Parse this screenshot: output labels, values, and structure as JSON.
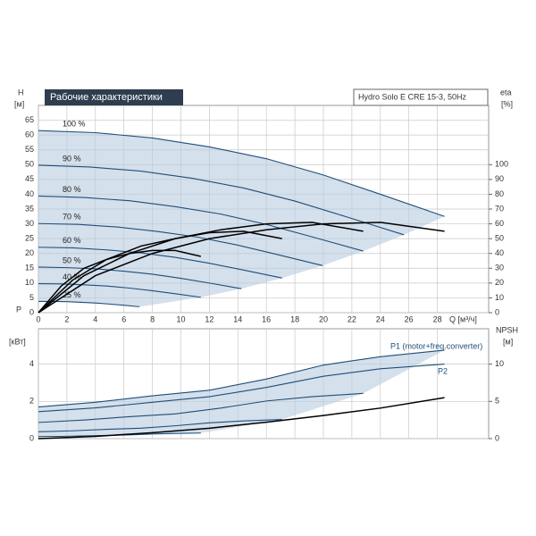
{
  "chart_data": [
    {
      "type": "line",
      "title": "Рабочие характеристики",
      "subtitle": "Hydro Solo E CRE 15-3, 50Hz",
      "y_label": "H",
      "y_unit": "[м]",
      "y2_label": "eta",
      "y2_unit": "[%]",
      "x_label": "Q [м³/ч]",
      "xlim": [
        0,
        31.6
      ],
      "ylim": [
        0,
        70
      ],
      "y2lim": [
        0,
        140
      ],
      "grid": true,
      "xticks": [
        0,
        2,
        4,
        6,
        8,
        10,
        12,
        14,
        16,
        18,
        20,
        22,
        24,
        26,
        28
      ],
      "yticks": [
        0,
        5,
        10,
        15,
        20,
        25,
        30,
        35,
        40,
        45,
        50,
        55,
        60,
        65
      ],
      "y2ticks": [
        0,
        10,
        20,
        30,
        40,
        50,
        60,
        70,
        80,
        90,
        100
      ],
      "series": [
        {
          "name": "100 %",
          "color": "#1f4e79",
          "x": [
            0,
            4,
            8,
            12,
            16,
            20,
            24,
            28.5
          ],
          "values": [
            61.5,
            60.8,
            59,
            56,
            52,
            46.5,
            40,
            32.5
          ]
        },
        {
          "name": "90 %",
          "color": "#1f4e79",
          "x": [
            0,
            3.6,
            7.2,
            10.8,
            14.4,
            18,
            21.6,
            25.65
          ],
          "values": [
            49.8,
            49.2,
            47.8,
            45.4,
            42.1,
            37.7,
            32.4,
            26.3
          ]
        },
        {
          "name": "80 %",
          "color": "#1f4e79",
          "x": [
            0,
            3.2,
            6.4,
            9.6,
            12.8,
            16,
            19.2,
            22.8
          ],
          "values": [
            39.4,
            38.9,
            37.8,
            35.8,
            33.3,
            29.8,
            25.6,
            20.8
          ]
        },
        {
          "name": "70 %",
          "color": "#1f4e79",
          "x": [
            0,
            2.8,
            5.6,
            8.4,
            11.2,
            14,
            16.8,
            19.95
          ],
          "values": [
            30.1,
            29.8,
            28.9,
            27.4,
            25.5,
            22.8,
            19.6,
            15.9
          ]
        },
        {
          "name": "60 %",
          "color": "#1f4e79",
          "x": [
            0,
            2.4,
            4.8,
            7.2,
            9.6,
            12,
            14.4,
            17.1
          ],
          "values": [
            22.1,
            21.9,
            21.2,
            20.2,
            18.7,
            16.7,
            14.4,
            11.7
          ]
        },
        {
          "name": "50 %",
          "color": "#1f4e79",
          "x": [
            0,
            2,
            4,
            6,
            8,
            10,
            12,
            14.25
          ],
          "values": [
            15.4,
            15.2,
            14.8,
            14,
            13,
            11.6,
            10,
            8.1
          ]
        },
        {
          "name": "40 %",
          "color": "#1f4e79",
          "x": [
            0,
            1.6,
            3.2,
            4.8,
            6.4,
            8,
            9.6,
            11.4
          ],
          "values": [
            9.8,
            9.7,
            9.4,
            9,
            8.3,
            7.4,
            6.4,
            5.2
          ]
        },
        {
          "name": "25 %",
          "color": "#1f4e79",
          "x": [
            0,
            1,
            2,
            3,
            4,
            5,
            6,
            7.1
          ],
          "values": [
            3.8,
            3.8,
            3.7,
            3.5,
            3.25,
            2.9,
            2.5,
            2.0
          ]
        },
        {
          "color": "#000000",
          "axis": "y2",
          "x": [
            0,
            4,
            8,
            12,
            16,
            20,
            24,
            28.5
          ],
          "values": [
            0,
            25,
            40,
            50,
            56,
            60,
            61,
            55
          ]
        },
        {
          "color": "#000000",
          "axis": "y2",
          "x": [
            0,
            3.2,
            6.4,
            9.6,
            12.8,
            16,
            19.2,
            22.8
          ],
          "values": [
            0,
            25,
            40,
            50,
            56,
            60,
            61,
            55
          ]
        },
        {
          "color": "#000000",
          "axis": "y2",
          "x": [
            0,
            2.4,
            4.8,
            7.2,
            9.6,
            12,
            14.4,
            17.1
          ],
          "values": [
            0,
            22,
            36,
            45,
            50,
            54,
            55,
            50
          ]
        },
        {
          "color": "#000000",
          "axis": "y2",
          "x": [
            0,
            1.6,
            3.2,
            4.8,
            6.4,
            8,
            9.6,
            11.4
          ],
          "values": [
            0,
            18,
            30,
            36,
            40,
            42,
            42,
            38
          ]
        }
      ]
    },
    {
      "type": "line",
      "y_label": "P",
      "y_unit": "[кВт]",
      "y2_label": "NPSH",
      "y2_unit": "[м]",
      "annotations": [
        "P1 (motor+freq.converter)",
        "P2"
      ],
      "xlim": [
        0,
        31.6
      ],
      "ylim": [
        0,
        5.9
      ],
      "y2lim": [
        0,
        14.75
      ],
      "grid": true,
      "yticks": [
        0,
        2,
        4
      ],
      "y2ticks": [
        0,
        5,
        10
      ],
      "series": [
        {
          "color": "#1f4e79",
          "x": [
            0,
            4,
            8,
            12,
            16,
            20,
            24,
            28.5
          ],
          "values": [
            1.7,
            1.95,
            2.3,
            2.6,
            3.2,
            3.95,
            4.4,
            4.75
          ]
        },
        {
          "color": "#1f4e79",
          "x": [
            0,
            4,
            8,
            12,
            16,
            20,
            24,
            28.5
          ],
          "values": [
            1.45,
            1.65,
            1.95,
            2.25,
            2.75,
            3.35,
            3.75,
            4.0
          ]
        },
        {
          "color": "#1f4e79",
          "x": [
            0,
            3.2,
            6.4,
            9.6,
            12.8,
            16,
            19.2,
            22.8
          ],
          "values": [
            0.87,
            1.0,
            1.18,
            1.33,
            1.64,
            2.02,
            2.25,
            2.43
          ]
        },
        {
          "color": "#1f4e79",
          "x": [
            0,
            2.4,
            4.8,
            7.2,
            9.6,
            12,
            14.4,
            17.1
          ],
          "values": [
            0.37,
            0.42,
            0.5,
            0.56,
            0.69,
            0.85,
            0.95,
            1.03
          ]
        },
        {
          "color": "#1f4e79",
          "x": [
            0,
            1.6,
            3.2,
            4.8,
            6.4,
            8,
            9.6,
            11.4
          ],
          "values": [
            0.11,
            0.12,
            0.15,
            0.17,
            0.2,
            0.25,
            0.28,
            0.3
          ]
        },
        {
          "color": "#000000",
          "axis": "y2",
          "x": [
            0,
            4,
            8,
            12,
            16,
            20,
            24,
            28.5
          ],
          "values": [
            0,
            0.3,
            0.8,
            1.4,
            2.2,
            3.1,
            4.1,
            5.5
          ]
        }
      ]
    }
  ]
}
